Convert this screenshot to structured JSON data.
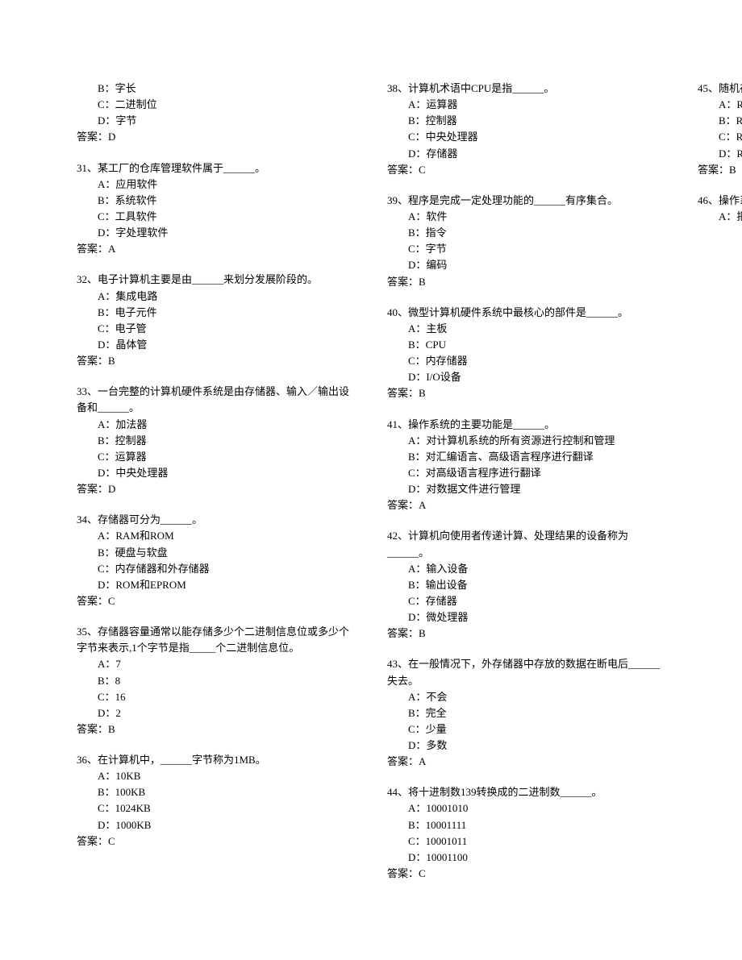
{
  "questions": [
    {
      "partial_top": true,
      "stem": null,
      "options": [
        {
          "label": "B",
          "text": "字长"
        },
        {
          "label": "C",
          "text": "二进制位"
        },
        {
          "label": "D",
          "text": "字节"
        }
      ],
      "answer": "D"
    },
    {
      "number": "31",
      "stem": "某工厂的仓库管理软件属于______。",
      "options": [
        {
          "label": "A",
          "text": "应用软件"
        },
        {
          "label": "B",
          "text": "系统软件"
        },
        {
          "label": "C",
          "text": "工具软件"
        },
        {
          "label": "D",
          "text": "字处理软件"
        }
      ],
      "answer": "A"
    },
    {
      "number": "32",
      "stem": "电子计算机主要是由______来划分发展阶段的。",
      "options": [
        {
          "label": "A",
          "text": "集成电路"
        },
        {
          "label": "B",
          "text": "电子元件"
        },
        {
          "label": "C",
          "text": "电子管"
        },
        {
          "label": "D",
          "text": "晶体管"
        }
      ],
      "answer": "B"
    },
    {
      "number": "33",
      "stem": "一台完整的计算机硬件系统是由存储器、输入／输出设备和______。",
      "options": [
        {
          "label": "A",
          "text": "加法器"
        },
        {
          "label": "B",
          "text": "控制器"
        },
        {
          "label": "C",
          "text": "运算器"
        },
        {
          "label": "D",
          "text": "中央处理器"
        }
      ],
      "answer": "D"
    },
    {
      "number": "34",
      "stem": "存储器可分为______。",
      "options": [
        {
          "label": "A",
          "text": "RAM和ROM"
        },
        {
          "label": "B",
          "text": "硬盘与软盘"
        },
        {
          "label": "C",
          "text": "内存储器和外存储器"
        },
        {
          "label": "D",
          "text": "ROM和EPROM"
        }
      ],
      "answer": "C"
    },
    {
      "number": "35",
      "stem": "存储器容量通常以能存储多少个二进制信息位或多少个字节来表示,1个字节是指_____个二进制信息位。",
      "options": [
        {
          "label": "A",
          "text": "7"
        },
        {
          "label": "B",
          "text": "8"
        },
        {
          "label": "C",
          "text": "16"
        },
        {
          "label": "D",
          "text": "2"
        }
      ],
      "answer": "B"
    },
    {
      "number": "36",
      "stem": "在计算机中，______字节称为1MB。",
      "options": [
        {
          "label": "A",
          "text": "10KB"
        },
        {
          "label": "B",
          "text": "100KB"
        },
        {
          "label": "C",
          "text": "1024KB"
        },
        {
          "label": "D",
          "text": "1000KB"
        }
      ],
      "answer": "C"
    },
    {
      "number": "38",
      "stem": "计算机术语中CPU是指______。",
      "options": [
        {
          "label": "A",
          "text": "运算器"
        },
        {
          "label": "B",
          "text": "控制器"
        },
        {
          "label": "C",
          "text": "中央处理器"
        },
        {
          "label": "D",
          "text": "存储器"
        }
      ],
      "answer": "C"
    },
    {
      "number": "39",
      "stem": "程序是完成一定处理功能的______有序集合。",
      "options": [
        {
          "label": "A",
          "text": "软件"
        },
        {
          "label": "B",
          "text": "指令"
        },
        {
          "label": "C",
          "text": "字节"
        },
        {
          "label": "D",
          "text": "编码"
        }
      ],
      "answer": "B"
    },
    {
      "number": "40",
      "stem": "微型计算机硬件系统中最核心的部件是______。",
      "options": [
        {
          "label": "A",
          "text": "主板"
        },
        {
          "label": "B",
          "text": "CPU"
        },
        {
          "label": "C",
          "text": "内存储器"
        },
        {
          "label": "D",
          "text": "I/O设备"
        }
      ],
      "answer": "B"
    },
    {
      "number": "41",
      "stem": "操作系统的主要功能是______。",
      "options": [
        {
          "label": "A",
          "text": "对计算机系统的所有资源进行控制和管理"
        },
        {
          "label": "B",
          "text": "对汇编语言、高级语言程序进行翻译"
        },
        {
          "label": "C",
          "text": "对高级语言程序进行翻译"
        },
        {
          "label": "D",
          "text": "对数据文件进行管理"
        }
      ],
      "answer": "A"
    },
    {
      "number": "42",
      "stem": "计算机向使用者传递计算、处理结果的设备称为______。",
      "options": [
        {
          "label": "A",
          "text": "输入设备"
        },
        {
          "label": "B",
          "text": "输出设备"
        },
        {
          "label": "C",
          "text": "存储器"
        },
        {
          "label": "D",
          "text": "微处理器"
        }
      ],
      "answer": "B"
    },
    {
      "number": "43",
      "stem": "在一般情况下，外存储器中存放的数据在断电后______失去。",
      "options": [
        {
          "label": "A",
          "text": "不会"
        },
        {
          "label": "B",
          "text": "完全"
        },
        {
          "label": "C",
          "text": "少量"
        },
        {
          "label": "D",
          "text": "多数"
        }
      ],
      "answer": "A"
    },
    {
      "number": "44",
      "stem": "将十进制数139转换成的二进制数______。",
      "options": [
        {
          "label": "A",
          "text": "10001010"
        },
        {
          "label": "B",
          "text": "10001111"
        },
        {
          "label": "C",
          "text": "10001011"
        },
        {
          "label": "D",
          "text": "10001100"
        }
      ],
      "answer": "C"
    },
    {
      "number": "45",
      "stem": "随机存储器简称______。",
      "options": [
        {
          "label": "A",
          "text": "ROM"
        },
        {
          "label": "B",
          "text": "RAM"
        },
        {
          "label": "C",
          "text": "ROME"
        },
        {
          "label": "D",
          "text": "RAME"
        }
      ],
      "answer": "B"
    },
    {
      "number": "46",
      "stem": "操作系统的作用是______。",
      "partial_bottom": true,
      "options": [
        {
          "label": "A",
          "text": "把源程序译成目标程序"
        }
      ],
      "answer": null
    }
  ],
  "labels": {
    "answer_prefix": "答案：",
    "option_sep": "："
  }
}
